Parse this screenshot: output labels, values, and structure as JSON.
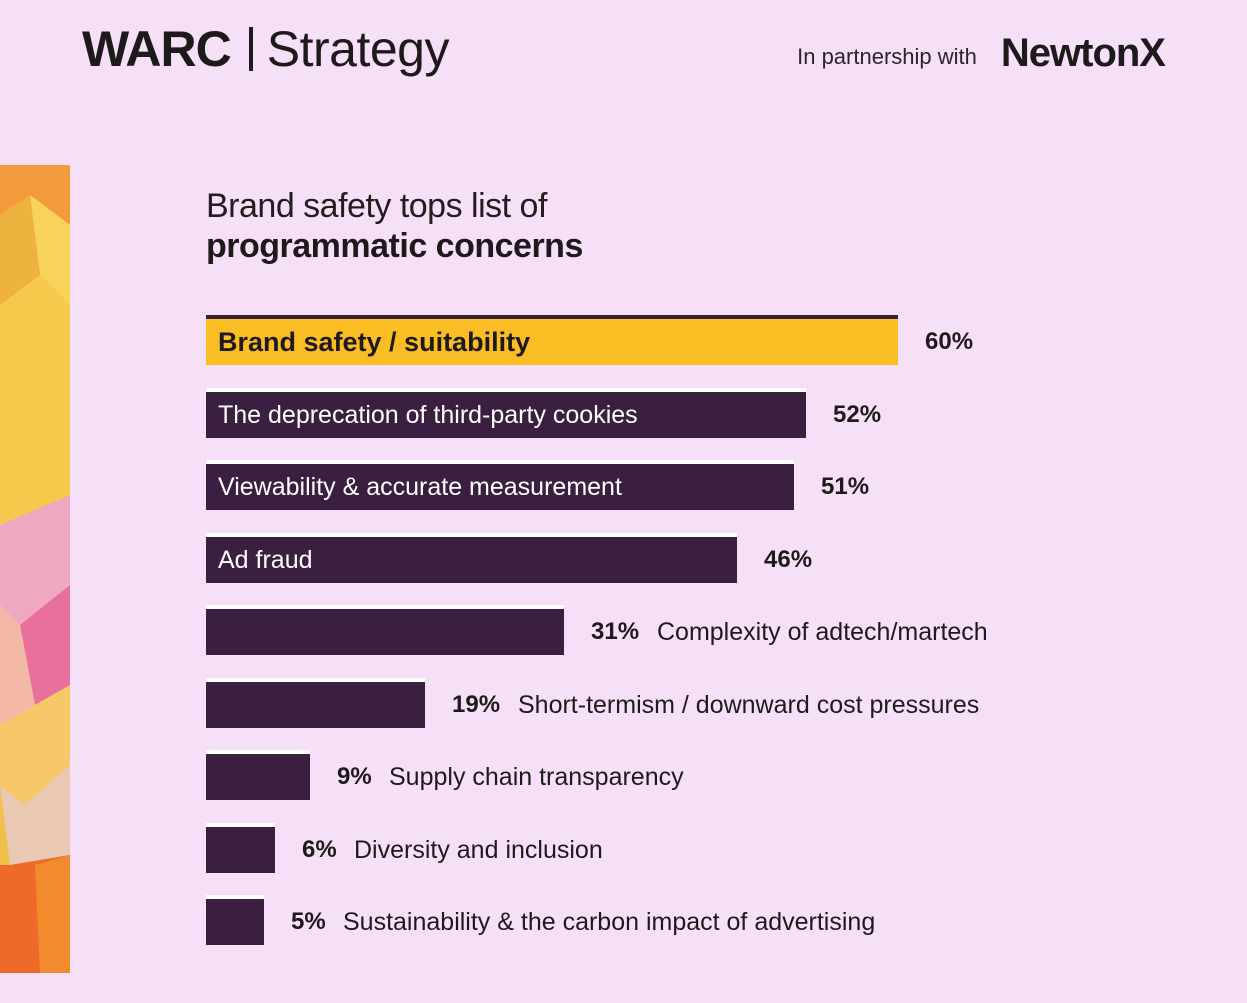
{
  "header": {
    "brand_left": "WARC",
    "brand_right": "Strategy",
    "partner_text": "In partnership with",
    "partner_logo": "NewtonX"
  },
  "chart_data": {
    "type": "bar",
    "orientation": "horizontal",
    "title_line1": "Brand safety tops list of",
    "title_line2": "programmatic concerns",
    "categories": [
      "Brand safety / suitability",
      "The deprecation of third-party cookies",
      "Viewability & accurate measurement",
      "Ad fraud",
      "Complexity of adtech/martech",
      "Short-termism / downward cost pressures",
      "Supply chain transparency",
      "Diversity and inclusion",
      "Sustainability & the carbon impact of advertising"
    ],
    "values": [
      60,
      52,
      51,
      46,
      31,
      19,
      9,
      6,
      5
    ],
    "value_labels": [
      "60%",
      "52%",
      "51%",
      "46%",
      "31%",
      "19%",
      "9%",
      "6%",
      "5%"
    ],
    "highlight_index": 0,
    "xlim": [
      0,
      60
    ],
    "colors": {
      "bar": "#3b1f40",
      "highlight": "#fbbd24",
      "background": "#f6e0f7"
    }
  }
}
